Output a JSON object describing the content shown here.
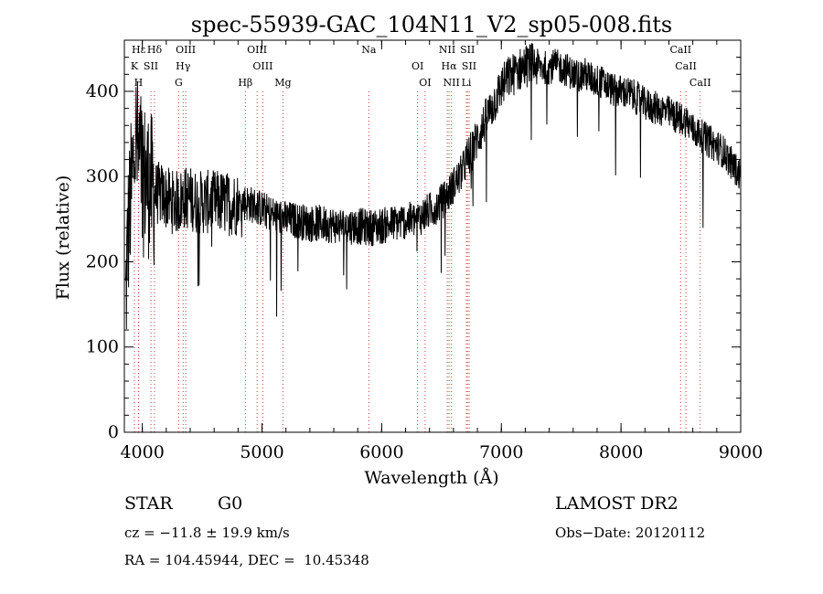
{
  "chart_data": {
    "type": "line",
    "title": "spec-55939-GAC_104N11_V2_sp05-008.fits",
    "xlabel": "Wavelength (Å)",
    "ylabel": "Flux (relative)",
    "xlim": [
      3850,
      9000
    ],
    "ylim": [
      0,
      460
    ],
    "xticks": [
      4000,
      5000,
      6000,
      7000,
      8000,
      9000
    ],
    "yticks": [
      0,
      100,
      200,
      300,
      400
    ],
    "grid": false,
    "series": [
      {
        "x": [
          3860,
          3880,
          3900,
          3920,
          3940,
          3960,
          3980,
          4000,
          4020,
          4040,
          4060,
          4080,
          4100,
          4150,
          4200,
          4250,
          4300,
          4350,
          4400,
          4450,
          4500,
          4550,
          4600,
          4650,
          4700,
          4750,
          4800,
          4850,
          4900,
          4950,
          5000,
          5050,
          5100,
          5150,
          5200,
          5300,
          5400,
          5500,
          5600,
          5700,
          5800,
          5900,
          6000,
          6100,
          6200,
          6300,
          6350,
          6400,
          6450,
          6500,
          6550,
          6600,
          6650,
          6700,
          6750,
          6800,
          6850,
          6900,
          6950,
          7000,
          7050,
          7100,
          7150,
          7200,
          7250,
          7300,
          7350,
          7400,
          7450,
          7500,
          7550,
          7600,
          7650,
          7700,
          7750,
          7800,
          7850,
          7900,
          7950,
          8000,
          8050,
          8100,
          8150,
          8200,
          8250,
          8300,
          8350,
          8400,
          8450,
          8500,
          8550,
          8600,
          8650,
          8700,
          8750,
          8800,
          8850,
          8900,
          8950,
          9000
        ],
        "y": [
          150,
          230,
          270,
          300,
          350,
          330,
          320,
          310,
          300,
          295,
          290,
          285,
          280,
          280,
          275,
          270,
          270,
          275,
          275,
          270,
          270,
          270,
          270,
          270,
          268,
          268,
          268,
          270,
          268,
          265,
          262,
          258,
          255,
          252,
          250,
          248,
          245,
          245,
          243,
          242,
          242,
          240,
          242,
          245,
          248,
          250,
          255,
          260,
          265,
          270,
          278,
          290,
          300,
          315,
          330,
          345,
          360,
          375,
          390,
          405,
          415,
          420,
          425,
          430,
          432,
          430,
          428,
          428,
          430,
          428,
          425,
          420,
          418,
          420,
          415,
          412,
          410,
          405,
          400,
          400,
          398,
          395,
          390,
          385,
          382,
          380,
          378,
          375,
          370,
          368,
          365,
          355,
          350,
          345,
          340,
          335,
          330,
          320,
          310,
          300
        ]
      }
    ],
    "line_ids": [
      {
        "label": "Hε",
        "x": 3970
      },
      {
        "label": "K",
        "x": 3934
      },
      {
        "label": "H",
        "x": 3968
      },
      {
        "label": "Hδ",
        "x": 4102
      },
      {
        "label": "SII",
        "x": 4072
      },
      {
        "label": "G",
        "x": 4304
      },
      {
        "label": "OIII",
        "x": 4363
      },
      {
        "label": "Hγ",
        "x": 4341
      },
      {
        "label": "Hβ",
        "x": 4861
      },
      {
        "label": "OIII",
        "x": 4959
      },
      {
        "label": "OIII",
        "x": 5007
      },
      {
        "label": "Mg",
        "x": 5175
      },
      {
        "label": "Na",
        "x": 5893
      },
      {
        "label": "OI",
        "x": 6300
      },
      {
        "label": "OI",
        "x": 6363
      },
      {
        "label": "NII",
        "x": 6548
      },
      {
        "label": "Hα",
        "x": 6563
      },
      {
        "label": "NII",
        "x": 6583
      },
      {
        "label": "SII",
        "x": 6717
      },
      {
        "label": "SII",
        "x": 6731
      },
      {
        "label": "Li",
        "x": 6708
      },
      {
        "label": "CaII",
        "x": 8498
      },
      {
        "label": "CaII",
        "x": 8542
      },
      {
        "label": "CaII",
        "x": 8662
      }
    ]
  },
  "info": {
    "object_class": "STAR",
    "subclass": "G0",
    "survey": "LAMOST DR2",
    "redshift_line": "cz = −11.8 ± 19.9 km/s",
    "obs_date_line": "Obs−Date: 20120112",
    "coords_line": "RA = 104.45944, DEC =  10.45348"
  }
}
